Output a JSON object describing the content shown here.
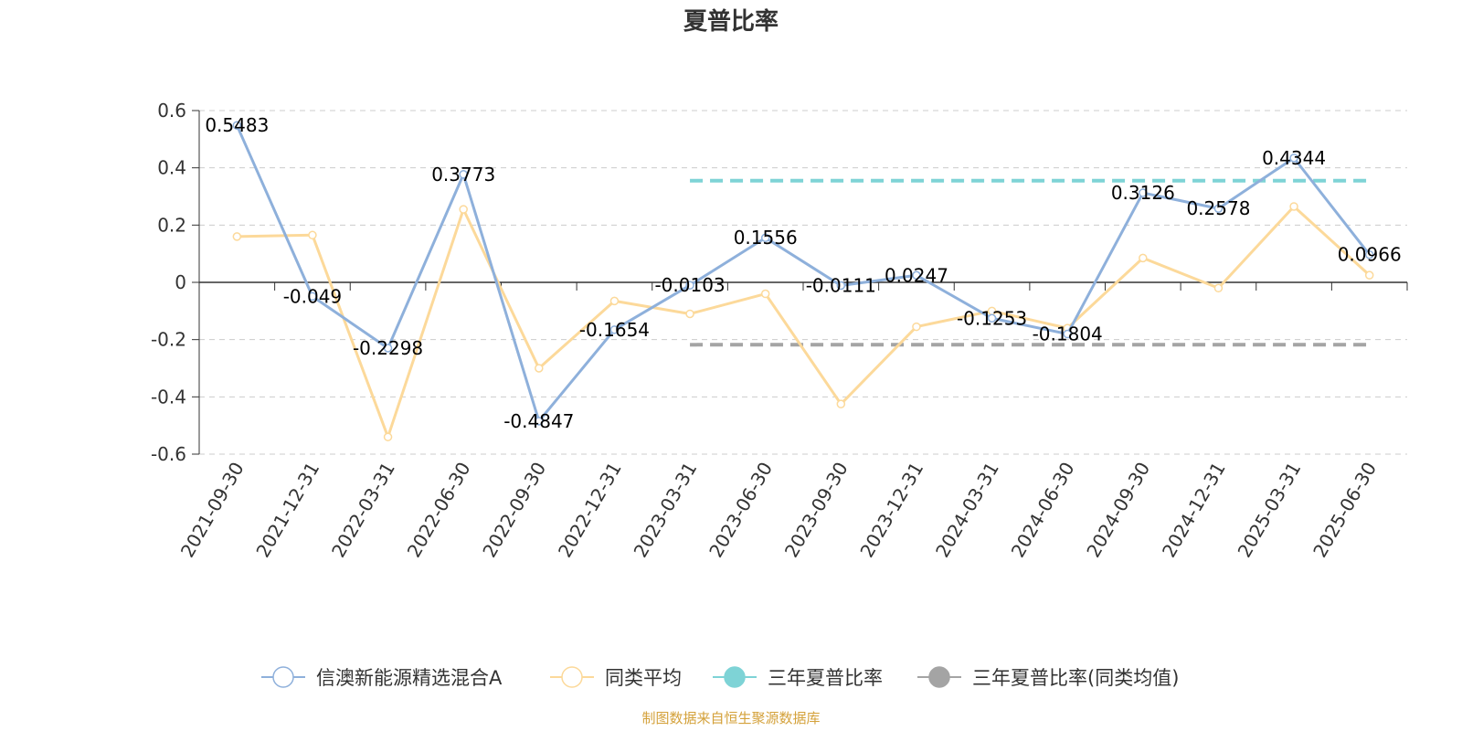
{
  "chart_data": {
    "type": "line",
    "title": "夏普比率",
    "categories": [
      "2021-09-30",
      "2021-12-31",
      "2022-03-31",
      "2022-06-30",
      "2022-09-30",
      "2022-12-31",
      "2023-03-31",
      "2023-06-30",
      "2023-09-30",
      "2023-12-31",
      "2024-03-31",
      "2024-06-30",
      "2024-09-30",
      "2024-12-31",
      "2025-03-31",
      "2025-06-30"
    ],
    "ylim": [
      -0.6,
      0.6
    ],
    "yticks": [
      "0.6",
      "0.4",
      "0.2",
      "0",
      "-0.2",
      "-0.4",
      "-0.6"
    ],
    "grid": true,
    "legend_position": "bottom",
    "series": [
      {
        "name": "信澳新能源精选混合A",
        "color": "#8eb0db",
        "values": [
          0.5483,
          -0.049,
          -0.2298,
          0.3773,
          -0.4847,
          -0.1654,
          -0.0103,
          0.1556,
          -0.0111,
          0.0247,
          -0.1253,
          -0.1804,
          0.3126,
          0.2578,
          0.4344,
          0.0966
        ],
        "labels": [
          "0.5483",
          "-0.049",
          "-0.2298",
          "0.3773",
          "-0.4847",
          "-0.1654",
          "-0.0103",
          "0.1556",
          "-0.0111",
          "0.0247",
          "-0.1253",
          "-0.1804",
          "0.3126",
          "0.2578",
          "0.4344",
          "0.0966"
        ]
      },
      {
        "name": "同类平均",
        "color": "#fcd99a",
        "values": [
          0.16,
          0.165,
          -0.54,
          0.255,
          -0.3,
          -0.065,
          -0.11,
          -0.04,
          -0.425,
          -0.155,
          -0.1,
          -0.16,
          0.085,
          -0.02,
          0.265,
          0.025
        ]
      }
    ],
    "reference_lines": [
      {
        "name": "三年夏普比率",
        "color": "#7ed3d6",
        "value": 0.355,
        "from": "2023-03-31",
        "to": "2025-06-30"
      },
      {
        "name": "三年夏普比率(同类均值)",
        "color": "#a4a4a4",
        "value": -0.218,
        "from": "2023-03-31",
        "to": "2025-06-30"
      }
    ]
  },
  "source": "制图数据来自恒生聚源数据库"
}
